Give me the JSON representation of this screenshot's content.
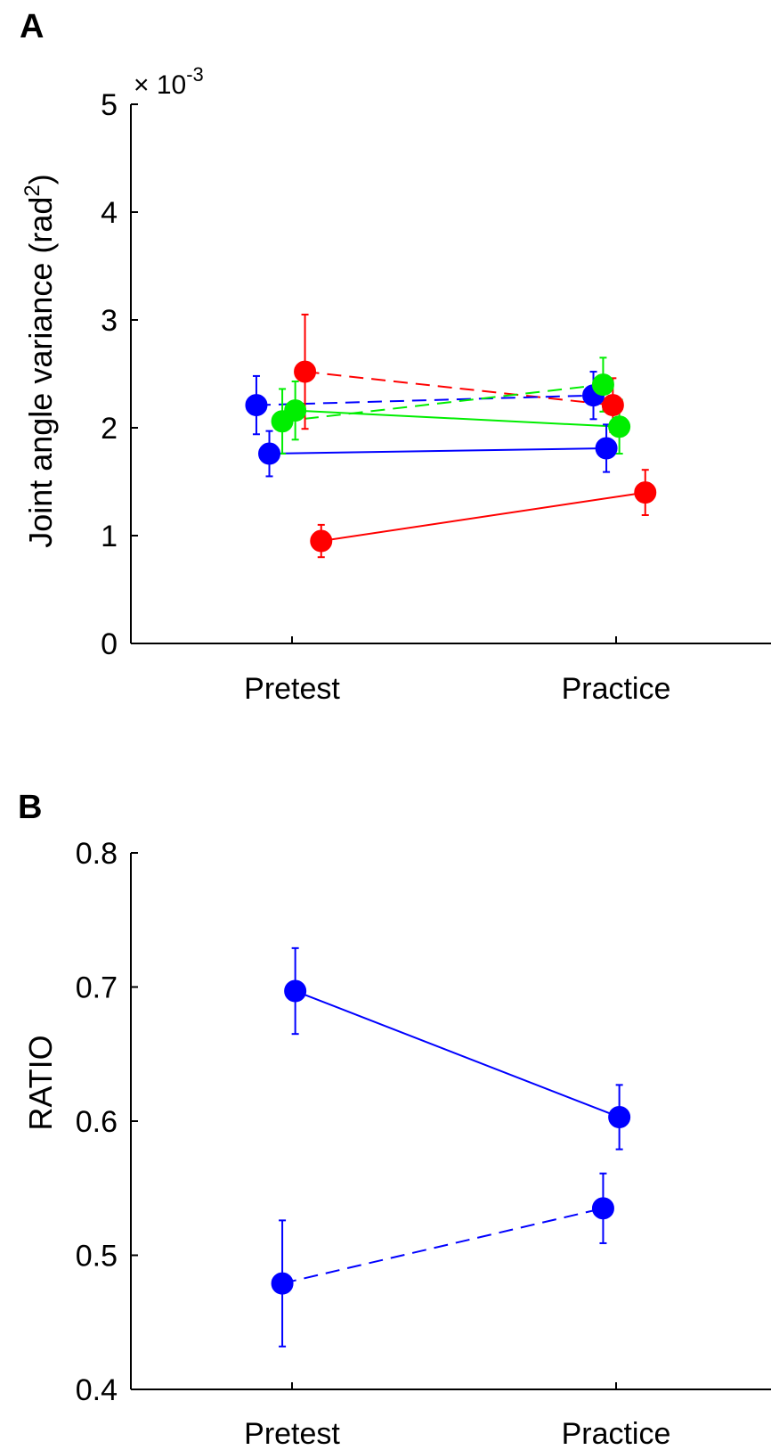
{
  "chart_data": [
    {
      "panel": "A",
      "type": "line",
      "ylabel": "Joint angle variance (rad",
      "ylabel_sup": "2",
      "ylabel_close": ")",
      "y_exponent_prefix": "× 10",
      "y_exponent_power": "-3",
      "ylim": [
        0,
        5
      ],
      "yticks": [
        "0",
        "1",
        "2",
        "3",
        "4",
        "5"
      ],
      "categories": [
        "Pretest",
        "Practice"
      ],
      "grid": false,
      "series": [
        {
          "color": "#ff0000",
          "dash": true,
          "x": [
            1.04,
            1.99
          ],
          "y": [
            2.52,
            2.21
          ],
          "err": [
            0.53,
            0.25
          ]
        },
        {
          "color": "#0000ff",
          "dash": true,
          "x": [
            0.89,
            1.93
          ],
          "y": [
            2.21,
            2.3
          ],
          "err": [
            0.27,
            0.22
          ]
        },
        {
          "color": "#00ee00",
          "dash": true,
          "x": [
            0.97,
            1.96
          ],
          "y": [
            2.06,
            2.4
          ],
          "err": [
            0.3,
            0.25
          ]
        },
        {
          "color": "#00ee00",
          "dash": false,
          "x": [
            1.01,
            2.01
          ],
          "y": [
            2.16,
            2.01
          ],
          "err": [
            0.27,
            0.25
          ]
        },
        {
          "color": "#0000ff",
          "dash": false,
          "x": [
            0.93,
            1.97
          ],
          "y": [
            1.76,
            1.81
          ],
          "err": [
            0.21,
            0.22
          ]
        },
        {
          "color": "#ff0000",
          "dash": false,
          "x": [
            1.09,
            2.09
          ],
          "y": [
            0.95,
            1.4
          ],
          "err": [
            0.15,
            0.21
          ]
        }
      ]
    },
    {
      "panel": "B",
      "type": "line",
      "ylabel": "RATIO",
      "ylim": [
        0.4,
        0.8
      ],
      "yticks": [
        "0.4",
        "0.5",
        "0.6",
        "0.7",
        "0.8"
      ],
      "categories": [
        "Pretest",
        "Practice"
      ],
      "grid": false,
      "series": [
        {
          "color": "#0000ff",
          "dash": false,
          "x": [
            1.01,
            2.01
          ],
          "y": [
            0.697,
            0.603
          ],
          "err": [
            0.032,
            0.024
          ]
        },
        {
          "color": "#0000ff",
          "dash": true,
          "x": [
            0.97,
            1.96
          ],
          "y": [
            0.479,
            0.535
          ],
          "err": [
            0.047,
            0.026
          ]
        }
      ]
    }
  ]
}
